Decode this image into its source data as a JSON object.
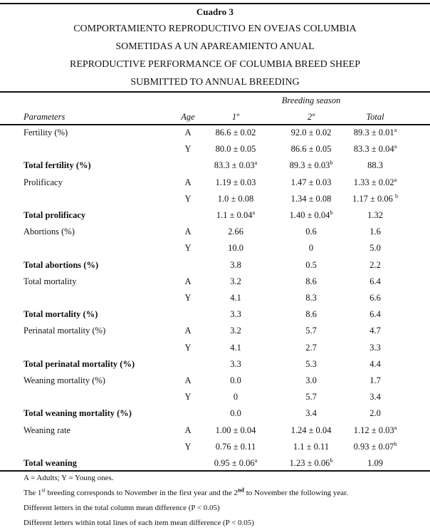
{
  "title": {
    "label": "Cuadro 3",
    "lines": [
      "COMPORTAMIENTO REPRODUCTIVO EN OVEJAS COLUMBIA",
      "SOMETIDAS A UN APAREAMIENTO ANUAL",
      "REPRODUCTIVE PERFORMANCE OF COLUMBIA BREED SHEEP",
      "SUBMITTED TO ANNUAL BREEDING"
    ]
  },
  "header": {
    "group": "Breeding season",
    "parameters": "Parameters",
    "age": "Age",
    "s1": "1º",
    "s2": "2º",
    "total": "Total"
  },
  "rows": [
    {
      "p": "Fertility  (%)",
      "bold": false,
      "age": "A",
      "s1": {
        "v": "86.6 ± 0.02"
      },
      "s2": {
        "v": "92.0 ± 0.02"
      },
      "tot": {
        "v": "89.3 ± 0.01",
        "sup": "a"
      }
    },
    {
      "p": "",
      "bold": false,
      "age": "Y",
      "s1": {
        "v": "80.0 ± 0.05"
      },
      "s2": {
        "v": "86.6 ± 0.05"
      },
      "tot": {
        "v": "83.3 ± 0.04",
        "sup": "a"
      }
    },
    {
      "p": "Total fertility   (%)",
      "bold": true,
      "age": "",
      "s1": {
        "v": "83.3 ± 0.03",
        "sup": "a"
      },
      "s2": {
        "v": "89.3 ± 0.03",
        "sup": "b"
      },
      "tot": {
        "v": "88.3"
      }
    },
    {
      "p": "Prolificacy",
      "bold": false,
      "age": "A",
      "s1": {
        "v": "1.19 ± 0.03"
      },
      "s2": {
        "v": "1.47 ± 0.03"
      },
      "tot": {
        "v": "1.33 ± 0.02",
        "sup": "a"
      }
    },
    {
      "p": "",
      "bold": false,
      "age": "Y",
      "s1": {
        "v": "1.0 ± 0.08"
      },
      "s2": {
        "v": "1.34 ± 0.08"
      },
      "tot": {
        "v": "1.17 ± 0.06 ",
        "sup": "b"
      }
    },
    {
      "p": "Total prolificacy",
      "bold": true,
      "age": "",
      "s1": {
        "v": "1.1 ± 0.04",
        "sup": "a"
      },
      "s2": {
        "v": "1.40 ± 0.04",
        "sup": "b"
      },
      "tot": {
        "v": "1.32"
      }
    },
    {
      "p": "Abortions (%)",
      "bold": false,
      "age": "A",
      "s1": {
        "v": "2.66"
      },
      "s2": {
        "v": "0.6"
      },
      "tot": {
        "v": "1.6"
      }
    },
    {
      "p": "",
      "bold": false,
      "age": "Y",
      "s1": {
        "v": "10.0"
      },
      "s2": {
        "v": "0"
      },
      "tot": {
        "v": "5.0"
      }
    },
    {
      "p": "Total abortions  (%)",
      "bold": true,
      "age": "",
      "s1": {
        "v": "3.8"
      },
      "s2": {
        "v": "0.5"
      },
      "tot": {
        "v": "2.2"
      }
    },
    {
      "p": "Total mortality",
      "bold": false,
      "age": "A",
      "s1": {
        "v": "3.2"
      },
      "s2": {
        "v": "8.6"
      },
      "tot": {
        "v": "6.4"
      }
    },
    {
      "p": "",
      "bold": false,
      "age": "Y",
      "s1": {
        "v": "4.1"
      },
      "s2": {
        "v": "8.3"
      },
      "tot": {
        "v": "6.6"
      }
    },
    {
      "p": "Total mortality (%)",
      "bold": true,
      "age": "",
      "s1": {
        "v": "3.3"
      },
      "s2": {
        "v": "8.6"
      },
      "tot": {
        "v": "6.4"
      }
    },
    {
      "p": "Perinatal mortality (%)",
      "bold": false,
      "age": "A",
      "s1": {
        "v": "3.2"
      },
      "s2": {
        "v": "5.7"
      },
      "tot": {
        "v": "4.7"
      }
    },
    {
      "p": "",
      "bold": false,
      "age": "Y",
      "s1": {
        "v": "4.1"
      },
      "s2": {
        "v": "2.7"
      },
      "tot": {
        "v": "3.3"
      }
    },
    {
      "p": "Total perinatal mortality (%)",
      "bold": true,
      "age": "",
      "s1": {
        "v": "3.3"
      },
      "s2": {
        "v": "5.3"
      },
      "tot": {
        "v": "4.4"
      }
    },
    {
      "p": "Weaning mortality (%)",
      "bold": false,
      "age": "A",
      "s1": {
        "v": "0.0"
      },
      "s2": {
        "v": "3.0"
      },
      "tot": {
        "v": "1.7"
      }
    },
    {
      "p": "",
      "bold": false,
      "age": "Y",
      "s1": {
        "v": "0"
      },
      "s2": {
        "v": "5.7"
      },
      "tot": {
        "v": "3.4"
      }
    },
    {
      "p": "Total weaning mortality (%)",
      "bold": true,
      "age": "",
      "s1": {
        "v": "0.0"
      },
      "s2": {
        "v": "3.4"
      },
      "tot": {
        "v": "2.0"
      }
    },
    {
      "p": "Weaning rate",
      "bold": false,
      "age": "A",
      "s1": {
        "v": "1.00 ± 0.04"
      },
      "s2": {
        "v": "1.24 ± 0.04"
      },
      "tot": {
        "v": "1.12 ± 0.03",
        "sup": "a"
      }
    },
    {
      "p": "",
      "bold": false,
      "age": "Y",
      "s1": {
        "v": "0.76 ± 0.11"
      },
      "s2": {
        "v": "1.1 ± 0.11"
      },
      "tot": {
        "v": "0.93 ± 0.07",
        "sup": "b"
      }
    },
    {
      "p": "Total weaning",
      "bold": true,
      "age": "",
      "s1": {
        "v": "0.95 ± 0.06",
        "sup": "a"
      },
      "s2": {
        "v": "1.23 ± 0.06",
        "sup": "b"
      },
      "tot": {
        "v": "1.09"
      }
    }
  ],
  "footnotes": {
    "abbrev": "A = Adults; Y = Young ones.",
    "breeding": {
      "a": "The 1",
      "sup1": "st",
      "b": " breeding corresponds to November in the first year and the 2",
      "sup2": "nd",
      "c": " to November the following year."
    },
    "note1": "Different letters in the total column mean difference (P < 0.05)",
    "note2": "Different letters within total lines of each item mean difference (P < 0.05)"
  }
}
